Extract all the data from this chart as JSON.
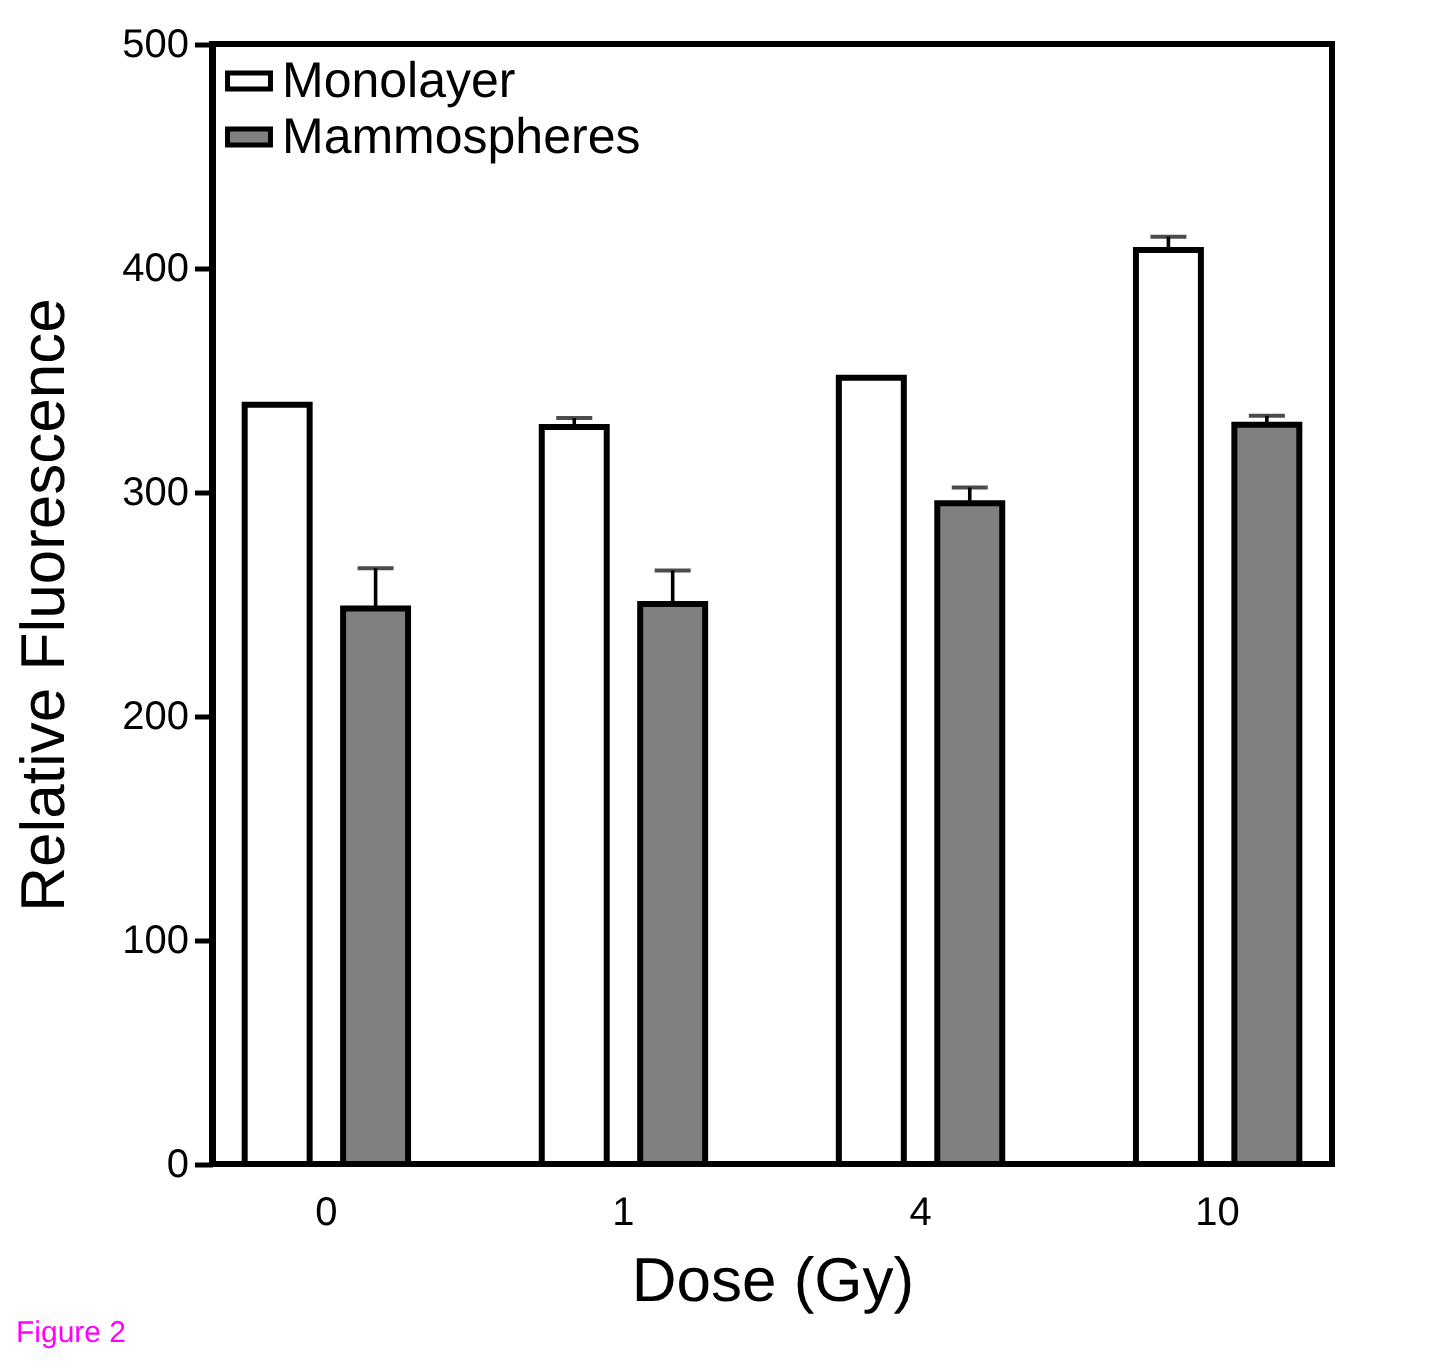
{
  "chart_data": {
    "type": "bar",
    "xlabel": "Dose (Gy)",
    "ylabel": "Relative Fluorescence",
    "categories": [
      "0",
      "1",
      "4",
      "10"
    ],
    "series": [
      {
        "name": "Monolayer",
        "color": "#ffffff",
        "values": [
          339,
          329,
          351,
          408
        ],
        "errors": [
          null,
          [
            329,
            333
          ],
          null,
          [
            408,
            414
          ]
        ]
      },
      {
        "name": "Mammospheres",
        "color": "#808080",
        "values": [
          248,
          250,
          295,
          330
        ],
        "errors": [
          [
            248,
            266
          ],
          [
            250,
            265
          ],
          [
            295,
            302
          ],
          [
            330,
            334
          ]
        ]
      }
    ],
    "ylim": [
      0,
      500
    ],
    "yticks": [
      0,
      100,
      200,
      300,
      400,
      500
    ],
    "grid": false,
    "legend": "top left",
    "annotations": [
      "Figure 2"
    ]
  }
}
